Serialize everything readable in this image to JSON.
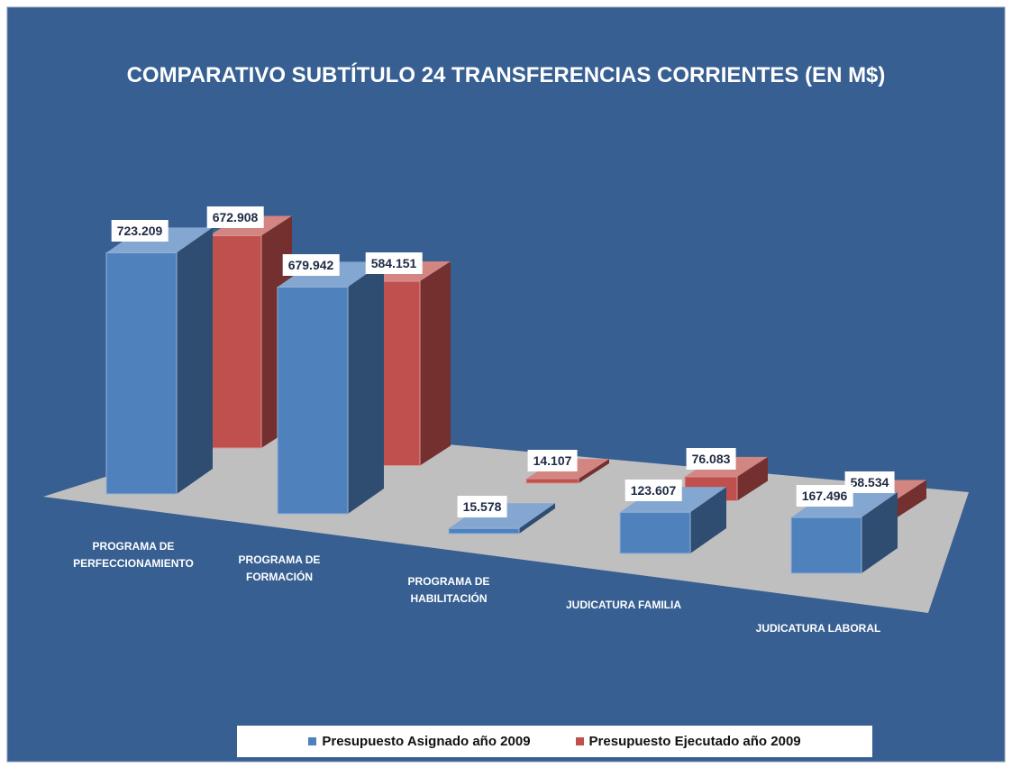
{
  "chart_data": {
    "type": "bar3d",
    "title": "COMPARATIVO SUBTÍTULO 24 TRANSFERENCIAS CORRIENTES (EN M$)",
    "categories": [
      "PROGRAMA DE PERFECCIONAMIENTO",
      "PROGRAMA DE FORMACIÓN",
      "PROGRAMA DE HABILITACIÓN",
      "JUDICATURA FAMILIA",
      "JUDICATURA LABORAL"
    ],
    "series": [
      {
        "name": "Presupuesto Asignado año 2009",
        "color": "#4f81bd",
        "values": [
          723209,
          679942,
          15578,
          123607,
          167496
        ],
        "value_labels": [
          "723.209",
          "679.942",
          "15.578",
          "123.607",
          "167.496"
        ]
      },
      {
        "name": "Presupuesto Ejecutado año 2009",
        "color": "#c0504d",
        "values": [
          672908,
          584151,
          14107,
          76083,
          58534
        ],
        "value_labels": [
          "672.908",
          "584.151",
          "14.107",
          "76.083",
          "58.534"
        ]
      }
    ],
    "legend": "bottom"
  }
}
